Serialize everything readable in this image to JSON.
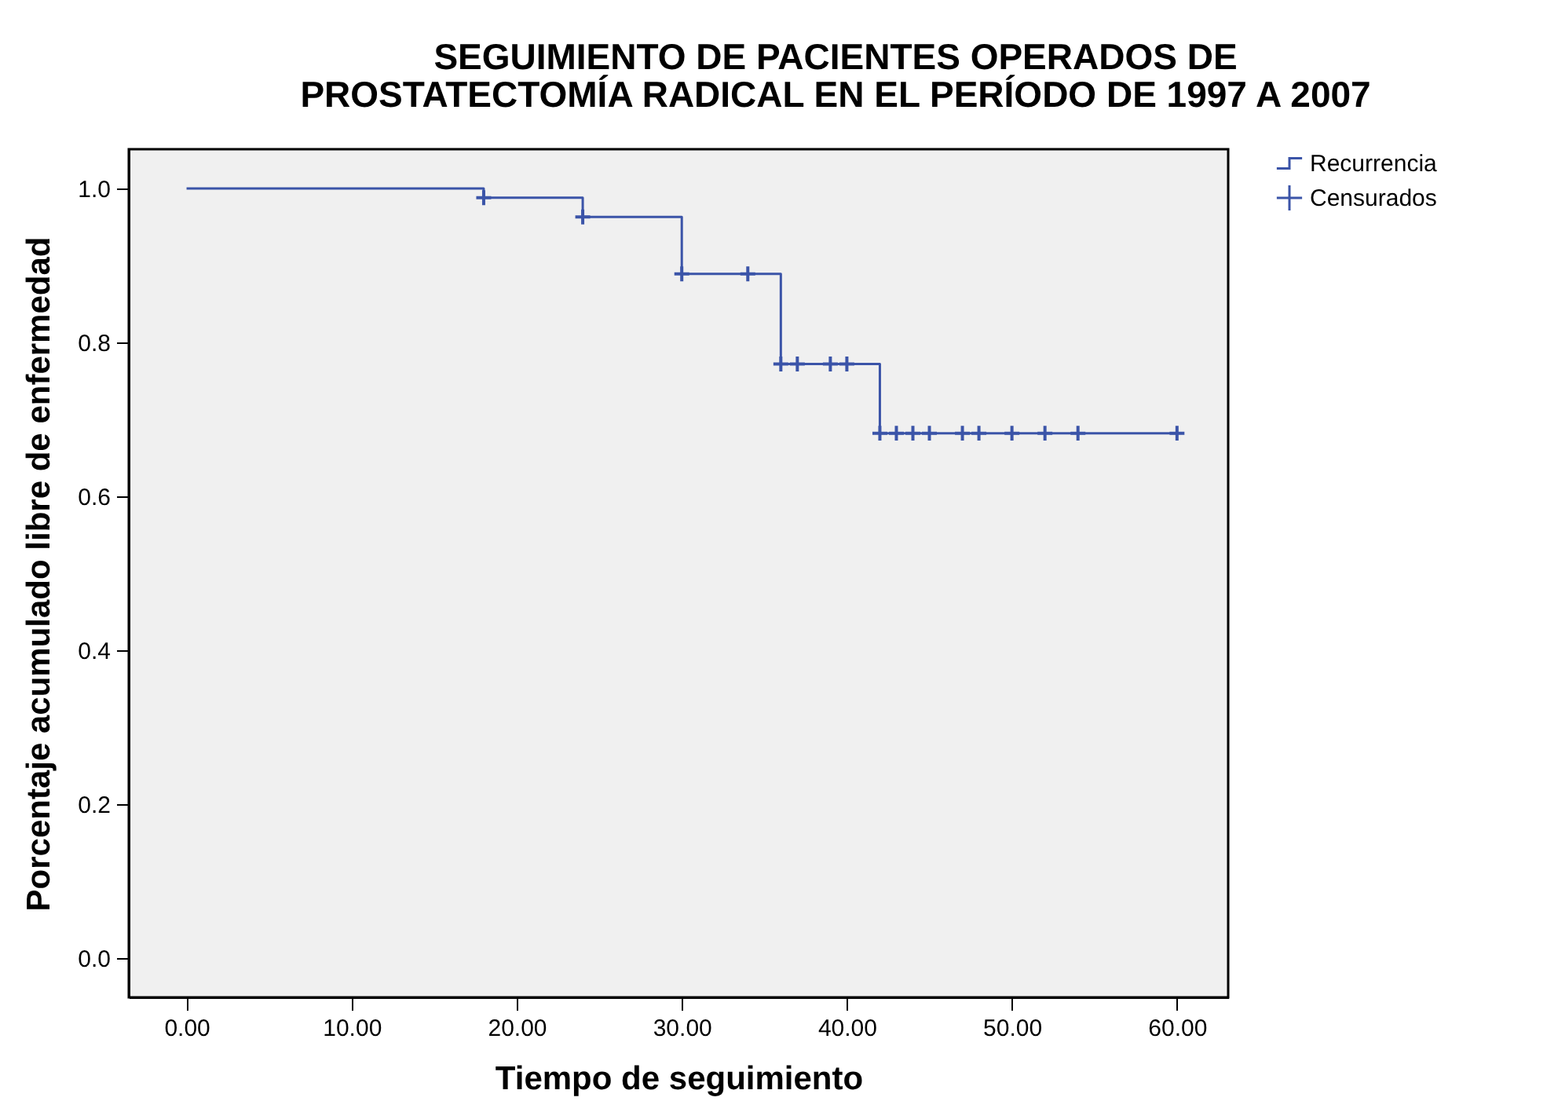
{
  "chart_data": {
    "type": "line",
    "title": "SEGUIMIENTO DE PACIENTES OPERADOS DE\nPROSTATECTOMÍA RADICAL EN EL PERÍODO DE 1997 A 2007",
    "xlabel": "Tiempo de seguimiento",
    "ylabel": "Porcentaje acumulado libre de enfermedad",
    "series": [
      {
        "name": "Recurrencia",
        "type": "step",
        "color": "#3b54a8",
        "x": [
          0,
          18,
          24,
          30,
          36,
          42,
          60
        ],
        "values": [
          1.0,
          0.988,
          0.963,
          0.889,
          0.772,
          0.682,
          0.682
        ]
      },
      {
        "name": "Censurados",
        "type": "scatter",
        "marker": "cross",
        "color": "#3b54a8",
        "x": [
          18,
          24,
          30,
          34,
          36,
          37,
          39,
          40,
          42,
          43,
          44,
          45,
          47,
          48,
          50,
          52,
          54,
          60
        ],
        "values": [
          0.988,
          0.963,
          0.889,
          0.889,
          0.772,
          0.772,
          0.772,
          0.772,
          0.682,
          0.682,
          0.682,
          0.682,
          0.682,
          0.682,
          0.682,
          0.682,
          0.682,
          0.682
        ]
      }
    ],
    "xlim": [
      -3.5,
      63.1
    ],
    "ylim": [
      -0.051,
      1.051
    ],
    "xticks": [
      {
        "value": 0,
        "label": "0.00"
      },
      {
        "value": 10,
        "label": "10.00"
      },
      {
        "value": 20,
        "label": "20.00"
      },
      {
        "value": 30,
        "label": "30.00"
      },
      {
        "value": 40,
        "label": "40.00"
      },
      {
        "value": 50,
        "label": "50.00"
      },
      {
        "value": 60,
        "label": "60.00"
      }
    ],
    "yticks": [
      {
        "value": 0,
        "label": "0.0"
      },
      {
        "value": 0.2,
        "label": "0.2"
      },
      {
        "value": 0.4,
        "label": "0.4"
      },
      {
        "value": 0.6,
        "label": "0.6"
      },
      {
        "value": 0.8,
        "label": "0.8"
      },
      {
        "value": 1,
        "label": "1.0"
      }
    ],
    "grid": false,
    "legend": "top right"
  }
}
